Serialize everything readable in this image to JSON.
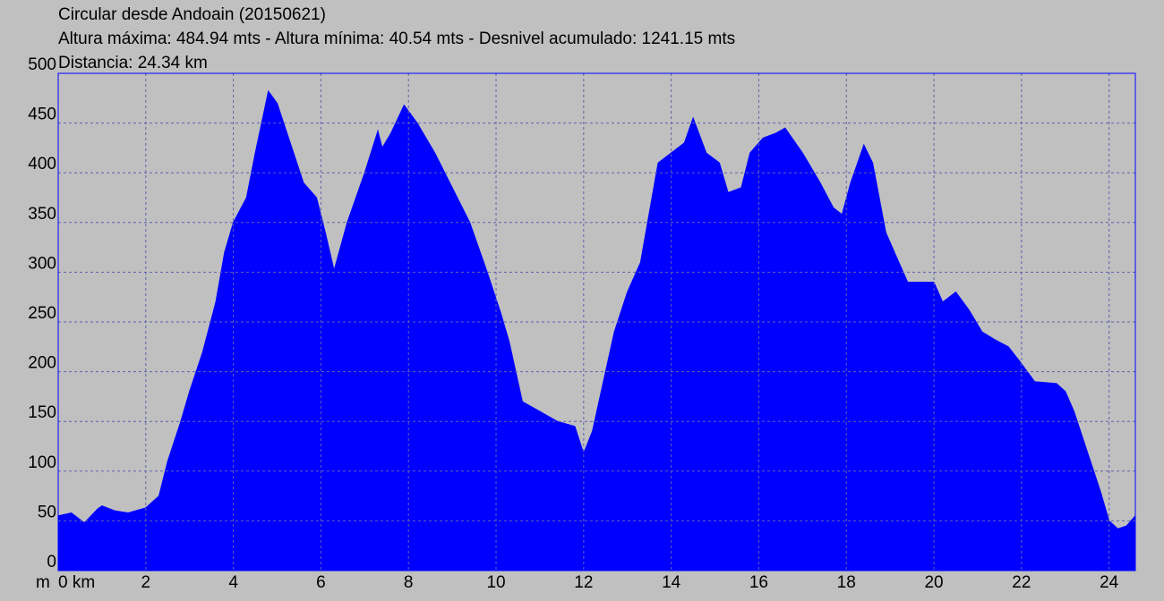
{
  "chart_data": {
    "type": "area",
    "title": "Circular desde Andoain (20150621)",
    "subtitle": "Altura máxima: 484.94 mts - Altura mínima: 40.54 mts - Desnivel acumulado: 1241.15 mts",
    "caption": "Distancia: 24.34 km",
    "y_unit": "m",
    "color": "#0000ff",
    "grid": true,
    "xlim": [
      0,
      24.6
    ],
    "ylim": [
      0,
      500
    ],
    "xticks": [
      {
        "value": 0,
        "label": "0 km"
      },
      2,
      4,
      6,
      8,
      10,
      12,
      14,
      16,
      18,
      20,
      22,
      24
    ],
    "yticks": [
      0,
      50,
      100,
      150,
      200,
      250,
      300,
      350,
      400,
      450,
      500
    ],
    "x": [
      0,
      0.3,
      0.6,
      0.9,
      1.0,
      1.3,
      1.6,
      2.0,
      2.3,
      2.5,
      2.8,
      3.0,
      3.3,
      3.6,
      3.8,
      4.0,
      4.3,
      4.5,
      4.8,
      5.0,
      5.3,
      5.6,
      5.9,
      6.1,
      6.3,
      6.6,
      7.0,
      7.3,
      7.4,
      7.6,
      7.9,
      8.2,
      8.6,
      9.0,
      9.4,
      9.8,
      10.1,
      10.3,
      10.5,
      10.6,
      11.0,
      11.4,
      11.8,
      12.0,
      12.2,
      12.4,
      12.7,
      13.0,
      13.3,
      13.5,
      13.7,
      14.0,
      14.3,
      14.5,
      14.8,
      15.1,
      15.3,
      15.6,
      15.8,
      16.1,
      16.4,
      16.6,
      17.0,
      17.4,
      17.7,
      17.9,
      18.1,
      18.4,
      18.6,
      18.9,
      19.2,
      19.4,
      20.0,
      20.2,
      20.5,
      20.8,
      21.1,
      21.4,
      21.7,
      22.0,
      22.3,
      22.8,
      23.0,
      23.2,
      23.5,
      23.8,
      24.0,
      24.2,
      24.4,
      24.6
    ],
    "values": [
      55,
      58,
      48,
      62,
      65,
      60,
      58,
      63,
      75,
      110,
      150,
      180,
      220,
      270,
      320,
      350,
      375,
      420,
      482,
      470,
      430,
      390,
      375,
      340,
      302,
      350,
      400,
      442,
      425,
      440,
      468,
      450,
      420,
      385,
      350,
      300,
      260,
      230,
      190,
      170,
      160,
      150,
      145,
      118,
      140,
      180,
      240,
      280,
      310,
      360,
      410,
      420,
      430,
      455,
      420,
      410,
      380,
      385,
      420,
      435,
      440,
      445,
      420,
      390,
      365,
      358,
      390,
      428,
      410,
      340,
      310,
      290,
      290,
      270,
      280,
      262,
      240,
      232,
      225,
      208,
      190,
      188,
      180,
      160,
      120,
      80,
      50,
      42,
      45,
      55
    ]
  }
}
